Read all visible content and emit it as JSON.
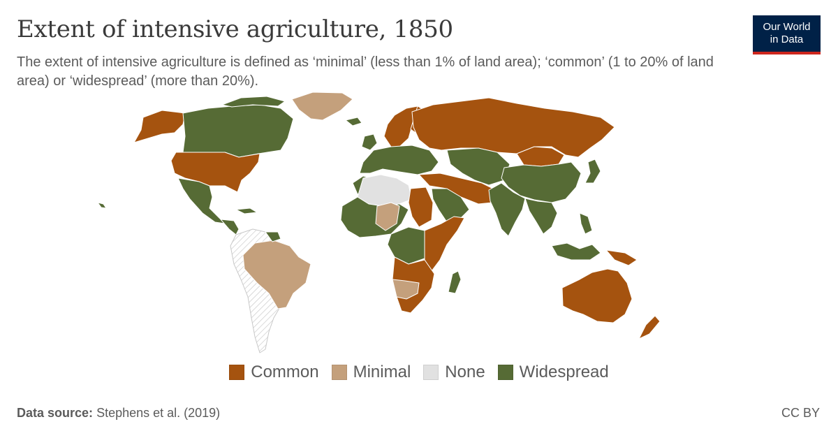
{
  "title": "Extent of intensive agriculture, 1850",
  "subtitle": "The extent of intensive agriculture is defined as ‘minimal’ (less than 1% of land area); ‘common’ (1 to 20% of land area) or ‘widespread’ (more than 20%).",
  "logo": {
    "line1": "Our World",
    "line2": "in Data"
  },
  "legend": [
    {
      "label": "Common",
      "color": "#a5530f"
    },
    {
      "label": "Minimal",
      "color": "#c4a07c"
    },
    {
      "label": "None",
      "color": "#e1e1e1"
    },
    {
      "label": "Widespread",
      "color": "#566b35"
    }
  ],
  "colors": {
    "no_data_hatch": "#c8c8c8",
    "border": "#ffffff"
  },
  "regions": [
    {
      "id": "canada",
      "category": "Widespread"
    },
    {
      "id": "alaska",
      "category": "Common"
    },
    {
      "id": "greenland",
      "category": "Minimal"
    },
    {
      "id": "usa",
      "category": "Common"
    },
    {
      "id": "mexico",
      "category": "Widespread"
    },
    {
      "id": "central-america",
      "category": "Widespread"
    },
    {
      "id": "south-america",
      "category": "No data"
    },
    {
      "id": "brazil",
      "category": "Minimal"
    },
    {
      "id": "western-europe",
      "category": "Widespread"
    },
    {
      "id": "scandinavia",
      "category": "Common"
    },
    {
      "id": "russia",
      "category": "Common"
    },
    {
      "id": "north-africa-desert",
      "category": "None"
    },
    {
      "id": "west-africa",
      "category": "Widespread"
    },
    {
      "id": "sahel",
      "category": "Minimal"
    },
    {
      "id": "sudan",
      "category": "Common"
    },
    {
      "id": "central-africa",
      "category": "Widespread"
    },
    {
      "id": "east-africa",
      "category": "Common"
    },
    {
      "id": "southern-africa",
      "category": "Common"
    },
    {
      "id": "namibia-botswana",
      "category": "Minimal"
    },
    {
      "id": "madagascar",
      "category": "Widespread"
    },
    {
      "id": "arabia",
      "category": "Widespread"
    },
    {
      "id": "iran",
      "category": "Common"
    },
    {
      "id": "central-asia",
      "category": "Widespread"
    },
    {
      "id": "mongolia",
      "category": "Common"
    },
    {
      "id": "china",
      "category": "Widespread"
    },
    {
      "id": "india",
      "category": "Widespread"
    },
    {
      "id": "southeast-asia",
      "category": "Widespread"
    },
    {
      "id": "japan",
      "category": "Widespread"
    },
    {
      "id": "indonesia",
      "category": "Widespread"
    },
    {
      "id": "australia",
      "category": "Common"
    },
    {
      "id": "new-zealand",
      "category": "Common"
    },
    {
      "id": "papua",
      "category": "Common"
    }
  ],
  "source": {
    "label": "Data source:",
    "text": "Stephens et al. (2019)"
  },
  "license": "CC BY"
}
